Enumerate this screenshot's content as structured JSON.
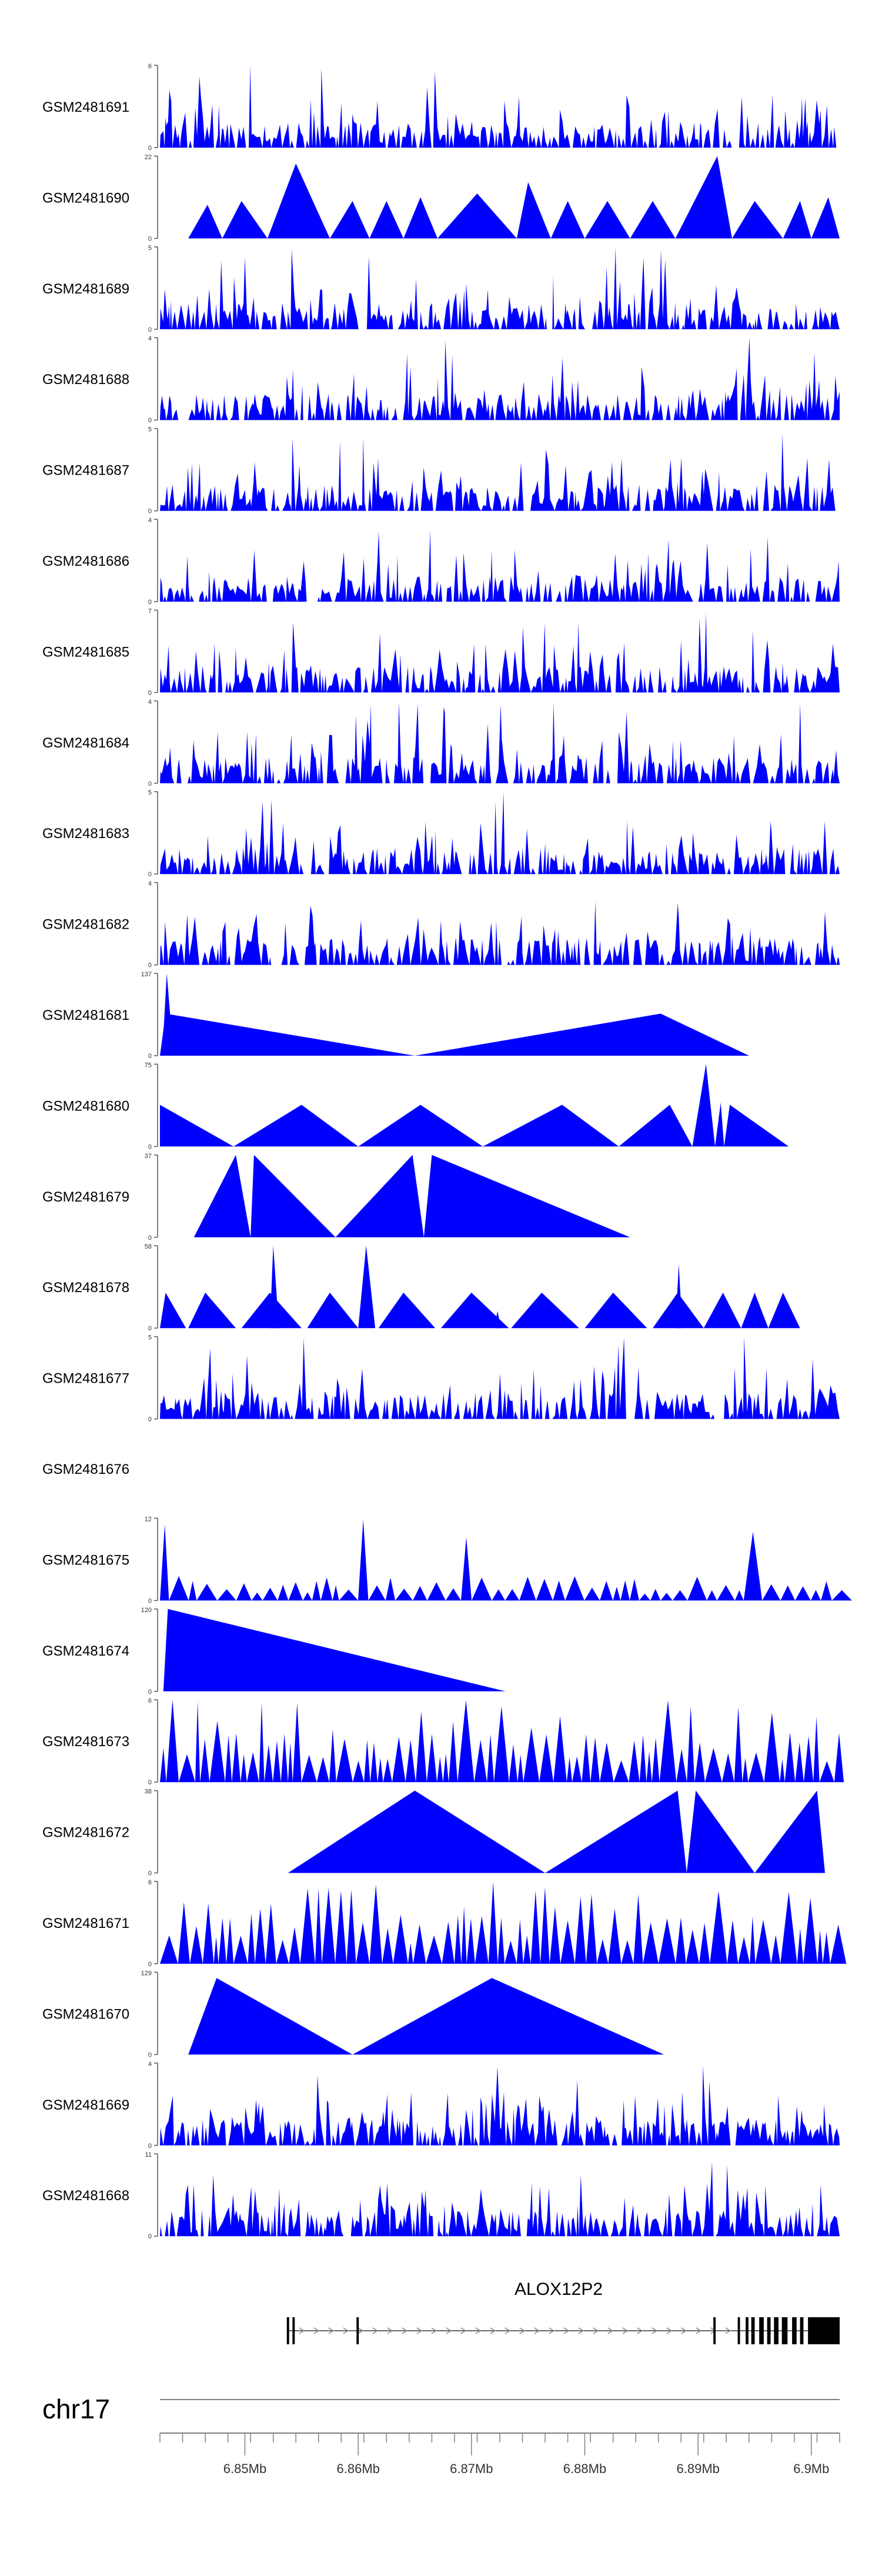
{
  "chart_data": {
    "type": "area",
    "chromosome": "chr17",
    "gene": "ALOX12P2",
    "xlim": [
      6.8425,
      6.9025
    ],
    "x_ticks": [
      6.85,
      6.86,
      6.87,
      6.88,
      6.89,
      6.9
    ],
    "x_tick_labels": [
      "6.85Mb",
      "6.86Mb",
      "6.87Mb",
      "6.88Mb",
      "6.89Mb",
      "6.9Mb"
    ],
    "fill_color": "#0000ff",
    "tracks": [
      {
        "name": "GSM2481691",
        "ymax": 6,
        "pattern": "dense",
        "seed": 11
      },
      {
        "name": "GSM2481690",
        "ymax": 22,
        "pattern": "sparse",
        "seed": 12,
        "peaks": [
          [
            6.845,
            6.8467,
            6.848,
            9
          ],
          [
            6.848,
            6.8497,
            6.852,
            10
          ],
          [
            6.852,
            6.8545,
            6.8575,
            20
          ],
          [
            6.8575,
            6.8595,
            6.861,
            10
          ],
          [
            6.861,
            6.8625,
            6.864,
            10
          ],
          [
            6.864,
            6.8655,
            6.867,
            11
          ],
          [
            6.867,
            6.8705,
            6.874,
            12
          ],
          [
            6.874,
            6.875,
            6.877,
            15
          ],
          [
            6.877,
            6.8785,
            6.88,
            10
          ],
          [
            6.88,
            6.882,
            6.884,
            10
          ],
          [
            6.884,
            6.886,
            6.888,
            10
          ],
          [
            6.888,
            6.8917,
            6.893,
            22
          ],
          [
            6.893,
            6.895,
            6.8975,
            10
          ],
          [
            6.8975,
            6.899,
            6.9,
            10
          ],
          [
            6.9,
            6.9015,
            6.9025,
            11
          ]
        ]
      },
      {
        "name": "GSM2481689",
        "ymax": 5,
        "pattern": "dense",
        "seed": 13
      },
      {
        "name": "GSM2481688",
        "ymax": 4,
        "pattern": "dense",
        "seed": 14
      },
      {
        "name": "GSM2481687",
        "ymax": 5,
        "pattern": "dense",
        "seed": 15
      },
      {
        "name": "GSM2481686",
        "ymax": 4,
        "pattern": "dense",
        "seed": 16
      },
      {
        "name": "GSM2481685",
        "ymax": 7,
        "pattern": "dense",
        "seed": 17
      },
      {
        "name": "GSM2481684",
        "ymax": 4,
        "pattern": "dense",
        "seed": 18
      },
      {
        "name": "GSM2481683",
        "ymax": 5,
        "pattern": "dense",
        "seed": 19
      },
      {
        "name": "GSM2481682",
        "ymax": 4,
        "pattern": "dense",
        "seed": 20
      },
      {
        "name": "GSM2481681",
        "ymax": 137,
        "pattern": "sparse",
        "seed": 21,
        "peaks": [
          [
            6.8425,
            6.843,
            6.865,
            70
          ],
          [
            6.8427,
            6.8431,
            6.8437,
            137
          ],
          [
            6.865,
            6.8867,
            6.8945,
            70
          ]
        ]
      },
      {
        "name": "GSM2481680",
        "ymax": 75,
        "pattern": "sparse",
        "seed": 22,
        "peaks": [
          [
            6.8425,
            6.8425,
            6.849,
            38
          ],
          [
            6.849,
            6.855,
            6.86,
            38
          ],
          [
            6.86,
            6.8655,
            6.871,
            38
          ],
          [
            6.871,
            6.878,
            6.883,
            38
          ],
          [
            6.883,
            6.8875,
            6.8895,
            38
          ],
          [
            6.8895,
            6.8907,
            6.8915,
            75
          ],
          [
            6.8915,
            6.892,
            6.8923,
            40
          ],
          [
            6.8923,
            6.8928,
            6.898,
            38
          ]
        ]
      },
      {
        "name": "GSM2481679",
        "ymax": 37,
        "pattern": "sparse",
        "seed": 23,
        "peaks": [
          [
            6.8455,
            6.8492,
            6.8505,
            37
          ],
          [
            6.8505,
            6.8508,
            6.858,
            37
          ],
          [
            6.858,
            6.8648,
            6.8658,
            37
          ],
          [
            6.8658,
            6.8665,
            6.884,
            37
          ]
        ]
      },
      {
        "name": "GSM2481678",
        "ymax": 58,
        "pattern": "sparse",
        "seed": 24,
        "peaks": [
          [
            6.8425,
            6.843,
            6.8448,
            25
          ],
          [
            6.845,
            6.8465,
            6.8492,
            25
          ],
          [
            6.8497,
            6.8522,
            6.855,
            25
          ],
          [
            6.8522,
            6.8525,
            6.853,
            58
          ],
          [
            6.8555,
            6.8575,
            6.86,
            25
          ],
          [
            6.86,
            6.8607,
            6.8615,
            58
          ],
          [
            6.8618,
            6.864,
            6.8668,
            25
          ],
          [
            6.8673,
            6.87,
            6.8733,
            25
          ],
          [
            6.872,
            6.8723,
            6.8726,
            12
          ],
          [
            6.8735,
            6.8762,
            6.8795,
            25
          ],
          [
            6.88,
            6.8825,
            6.8855,
            25
          ],
          [
            6.886,
            6.8882,
            6.8905,
            25
          ],
          [
            6.888,
            6.8883,
            6.8886,
            45
          ],
          [
            6.8905,
            6.8922,
            6.8938,
            25
          ],
          [
            6.8938,
            6.895,
            6.8962,
            25
          ],
          [
            6.8962,
            6.8975,
            6.899,
            25
          ]
        ]
      },
      {
        "name": "GSM2481677",
        "ymax": 5,
        "pattern": "dense",
        "seed": 25
      },
      {
        "name": "GSM2481676",
        "ymax": null,
        "pattern": "empty",
        "seed": 26
      },
      {
        "name": "GSM2481675",
        "ymax": 12,
        "pattern": "sparse-spiky",
        "seed": 27
      },
      {
        "name": "GSM2481674",
        "ymax": 120,
        "pattern": "sparse",
        "seed": 28,
        "peaks": [
          [
            6.8428,
            6.8432,
            6.873,
            120
          ]
        ]
      },
      {
        "name": "GSM2481673",
        "ymax": 6,
        "pattern": "triangles",
        "seed": 29
      },
      {
        "name": "GSM2481672",
        "ymax": 38,
        "pattern": "sparse",
        "seed": 30,
        "peaks": [
          [
            6.8538,
            6.865,
            6.8765,
            38
          ],
          [
            6.8765,
            6.8882,
            6.889,
            38
          ],
          [
            6.889,
            6.8898,
            6.895,
            38
          ],
          [
            6.895,
            6.9005,
            6.9012,
            38
          ]
        ]
      },
      {
        "name": "GSM2481671",
        "ymax": 6,
        "pattern": "triangles",
        "seed": 31
      },
      {
        "name": "GSM2481670",
        "ymax": 129,
        "pattern": "sparse",
        "seed": 32,
        "peaks": [
          [
            6.845,
            6.8475,
            6.8595,
            120
          ],
          [
            6.8595,
            6.8718,
            6.887,
            120
          ]
        ]
      },
      {
        "name": "GSM2481669",
        "ymax": 4,
        "pattern": "dense",
        "seed": 33
      },
      {
        "name": "GSM2481668",
        "ymax": 11,
        "pattern": "dense",
        "seed": 34
      }
    ],
    "gene_model": {
      "start": 6.8537,
      "end": 6.9025,
      "exons": [
        [
          6.8537,
          6.8539
        ],
        [
          6.8542,
          6.8544
        ],
        [
          6.85985,
          6.86005
        ],
        [
          6.89135,
          6.89155
        ],
        [
          6.8935,
          6.8937
        ],
        [
          6.8942,
          6.89445
        ],
        [
          6.8947,
          6.895
        ],
        [
          6.8954,
          6.8958
        ],
        [
          6.8961,
          6.8964
        ],
        [
          6.8967,
          6.8971
        ],
        [
          6.8974,
          6.8979
        ],
        [
          6.8983,
          6.8987
        ],
        [
          6.899,
          6.8993
        ],
        [
          6.8997,
          6.9025
        ]
      ]
    }
  }
}
